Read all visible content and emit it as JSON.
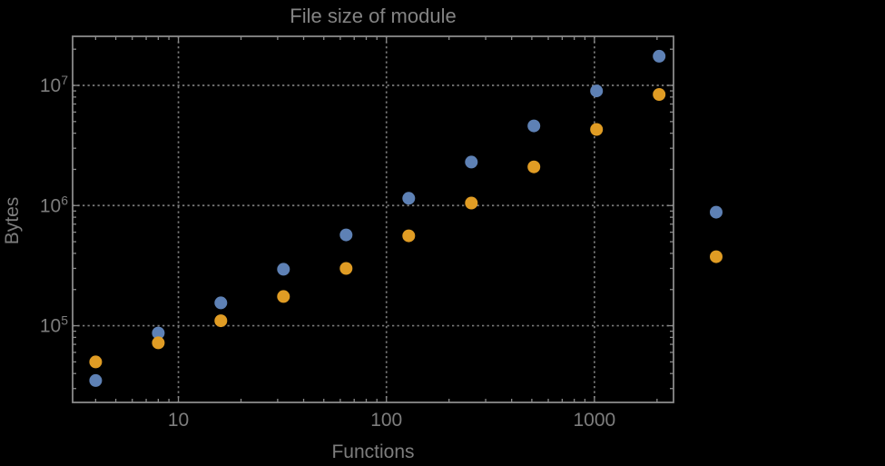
{
  "chart_data": {
    "type": "scatter",
    "title": "File size of module",
    "xlabel": "Functions",
    "ylabel": "Bytes",
    "x_scale": "log",
    "y_scale": "log",
    "xlim": [
      3.1,
      2400
    ],
    "ylim": [
      23000,
      25600000
    ],
    "grid": true,
    "grid_style": "dotted",
    "legend": "none",
    "clip_to_frame": false,
    "x_ticks": [
      {
        "value": 10,
        "label": "10"
      },
      {
        "value": 100,
        "label": "100"
      },
      {
        "value": 1000,
        "label": "1000"
      }
    ],
    "y_ticks": [
      {
        "value": 100000,
        "base": "10",
        "exp": "5"
      },
      {
        "value": 1000000,
        "base": "10",
        "exp": "6"
      },
      {
        "value": 10000000,
        "base": "10",
        "exp": "7"
      }
    ],
    "series": [
      {
        "name": "series-1-blue",
        "color": "#5e81b5",
        "points": [
          [
            4,
            35000
          ],
          [
            8,
            87000
          ],
          [
            16,
            155000
          ],
          [
            32,
            295000
          ],
          [
            64,
            570000
          ],
          [
            128,
            1150000
          ],
          [
            256,
            2300000
          ],
          [
            512,
            4600000
          ],
          [
            1024,
            9000000
          ],
          [
            2048,
            17500000
          ],
          [
            3850,
            880000
          ]
        ]
      },
      {
        "name": "series-2-orange",
        "color": "#e09c24",
        "points": [
          [
            4,
            50000
          ],
          [
            8,
            72000
          ],
          [
            16,
            110000
          ],
          [
            32,
            175000
          ],
          [
            64,
            300000
          ],
          [
            128,
            560000
          ],
          [
            256,
            1050000
          ],
          [
            512,
            2100000
          ],
          [
            1024,
            4300000
          ],
          [
            2048,
            8400000
          ],
          [
            3850,
            375000
          ]
        ]
      }
    ],
    "style": {
      "background": "#000000",
      "title_color": "#848484",
      "axis_label_color": "#7d7d7d",
      "tick_label_color": "#7d7d7d",
      "frame_color": "#8a8a8a",
      "grid_color": "#7a7a7a"
    }
  }
}
